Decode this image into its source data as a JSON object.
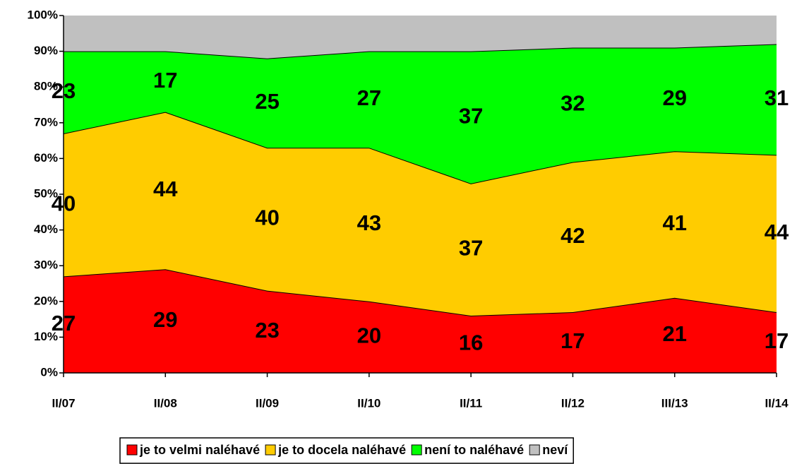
{
  "chart_data": {
    "type": "stacked_area",
    "categories": [
      "II/07",
      "II/08",
      "II/09",
      "II/10",
      "II/11",
      "II/12",
      "III/13",
      "II/14"
    ],
    "series": [
      {
        "name": "je to velmi naléhavé",
        "color": "#ff0000",
        "values": [
          27,
          29,
          23,
          20,
          16,
          17,
          21,
          17
        ],
        "labels": true
      },
      {
        "name": "je to docela naléhavé",
        "color": "#ffcc00",
        "values": [
          40,
          44,
          40,
          43,
          37,
          42,
          41,
          44
        ],
        "labels": true
      },
      {
        "name": "není to naléhavé",
        "color": "#00ff00",
        "values": [
          23,
          17,
          25,
          27,
          37,
          32,
          29,
          31
        ],
        "labels": true
      },
      {
        "name": "neví",
        "color": "#c0c0c0",
        "values": [
          10,
          10,
          12,
          10,
          10,
          9,
          9,
          8
        ],
        "labels": false
      }
    ],
    "ylim": [
      0,
      100
    ],
    "yticks": [
      {
        "value": 0,
        "label": "0%"
      },
      {
        "value": 10,
        "label": "10%"
      },
      {
        "value": 20,
        "label": "20%"
      },
      {
        "value": 30,
        "label": "30%"
      },
      {
        "value": 40,
        "label": "40%"
      },
      {
        "value": 50,
        "label": "50%"
      },
      {
        "value": 60,
        "label": "60%"
      },
      {
        "value": 70,
        "label": "70%"
      },
      {
        "value": 80,
        "label": "80%"
      },
      {
        "value": 90,
        "label": "90%"
      },
      {
        "value": 100,
        "label": "100%"
      }
    ],
    "legend": "bottom"
  }
}
